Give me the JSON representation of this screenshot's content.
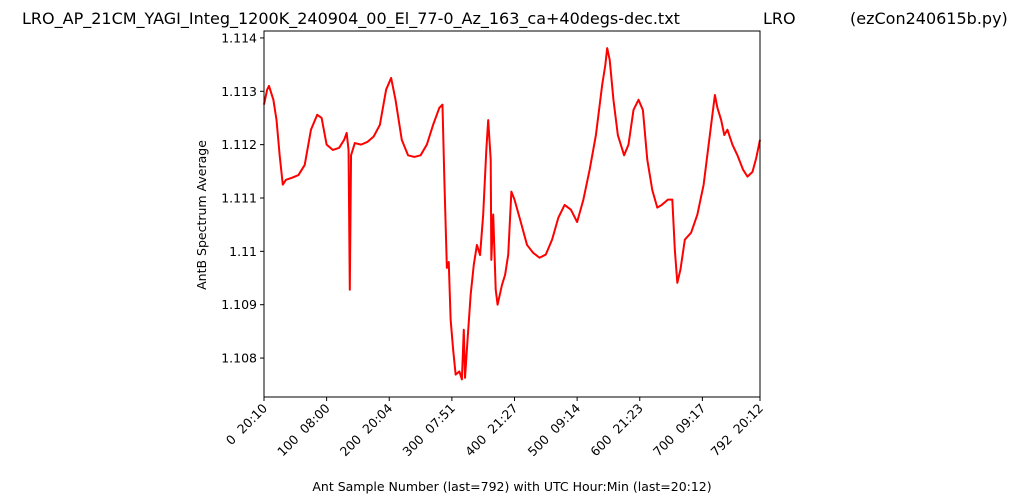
{
  "chart_data": {
    "type": "line",
    "title": "LRO_AP_21CM_YAGI_Integ_1200K_240904_00_El_77-0_Az_163_ca+40degs-dec.txt",
    "title_middle": "LRO",
    "title_right": "(ezCon240615b.py)",
    "xlabel": "Ant Sample Number (last=792) with UTC Hour:Min (last=20:12)",
    "ylabel": "AntB Spectrum Average",
    "color": "#ff0000",
    "xlim": [
      0,
      792
    ],
    "ylim": [
      1.10727,
      1.11413
    ],
    "xticks": [
      {
        "value": 0,
        "label": "0  20:10"
      },
      {
        "value": 100,
        "label": "100  08:00"
      },
      {
        "value": 200,
        "label": "200  20:04"
      },
      {
        "value": 300,
        "label": "300  07:51"
      },
      {
        "value": 400,
        "label": "400  21:27"
      },
      {
        "value": 500,
        "label": "500  09:14"
      },
      {
        "value": 600,
        "label": "600  21:23"
      },
      {
        "value": 700,
        "label": "700  09:17"
      },
      {
        "value": 792,
        "label": "792  20:12"
      }
    ],
    "yticks": [
      1.108,
      1.109,
      1.11,
      1.111,
      1.112,
      1.113,
      1.114
    ],
    "x": [
      0,
      5,
      8,
      15,
      20,
      25,
      30,
      35,
      45,
      55,
      65,
      75,
      85,
      92,
      100,
      110,
      120,
      128,
      132,
      135,
      137,
      139,
      145,
      155,
      165,
      175,
      185,
      195,
      203,
      210,
      220,
      230,
      240,
      250,
      260,
      270,
      280,
      285,
      288,
      292,
      295,
      298,
      302,
      306,
      312,
      316,
      319,
      321,
      325,
      330,
      335,
      340,
      345,
      350,
      355,
      358,
      362,
      363,
      366,
      370,
      373,
      380,
      385,
      390,
      395,
      400,
      410,
      420,
      430,
      440,
      450,
      460,
      470,
      480,
      490,
      500,
      510,
      520,
      530,
      540,
      545,
      548,
      552,
      558,
      565,
      575,
      582,
      590,
      598,
      605,
      612,
      620,
      628,
      635,
      645,
      652,
      656,
      660,
      665,
      672,
      682,
      692,
      702,
      710,
      716,
      720,
      724,
      730,
      735,
      740,
      748,
      756,
      765,
      772,
      780,
      786,
      792
    ],
    "values": [
      1.11275,
      1.11303,
      1.1131,
      1.11284,
      1.11246,
      1.1118,
      1.11125,
      1.11134,
      1.11138,
      1.11143,
      1.11162,
      1.11228,
      1.11256,
      1.1125,
      1.112,
      1.1119,
      1.11194,
      1.11209,
      1.11222,
      1.1119,
      1.10928,
      1.1118,
      1.11203,
      1.112,
      1.11205,
      1.11215,
      1.11237,
      1.11303,
      1.11325,
      1.11284,
      1.11209,
      1.1118,
      1.11177,
      1.1118,
      1.112,
      1.11237,
      1.11269,
      1.11275,
      1.11134,
      1.10969,
      1.1098,
      1.10872,
      1.10816,
      1.10769,
      1.10775,
      1.1076,
      1.10853,
      1.10763,
      1.10834,
      1.10919,
      1.10975,
      1.11012,
      1.10993,
      1.11069,
      1.1119,
      1.11246,
      1.11172,
      1.10984,
      1.11069,
      1.10928,
      1.109,
      1.10937,
      1.10956,
      1.10994,
      1.11112,
      1.11097,
      1.11055,
      1.11012,
      1.10997,
      1.10988,
      1.10994,
      1.11022,
      1.11063,
      1.11087,
      1.11078,
      1.11055,
      1.11097,
      1.11153,
      1.11218,
      1.11312,
      1.11349,
      1.11381,
      1.11359,
      1.11284,
      1.11218,
      1.1118,
      1.112,
      1.11265,
      1.11284,
      1.11265,
      1.11172,
      1.11115,
      1.11082,
      1.11087,
      1.11097,
      1.11097,
      1.11003,
      1.10941,
      1.10966,
      1.11022,
      1.11035,
      1.11069,
      1.11125,
      1.112,
      1.11256,
      1.11293,
      1.11269,
      1.11246,
      1.11218,
      1.11228,
      1.112,
      1.1118,
      1.11153,
      1.1114,
      1.11149,
      1.11175,
      1.11209
    ]
  }
}
